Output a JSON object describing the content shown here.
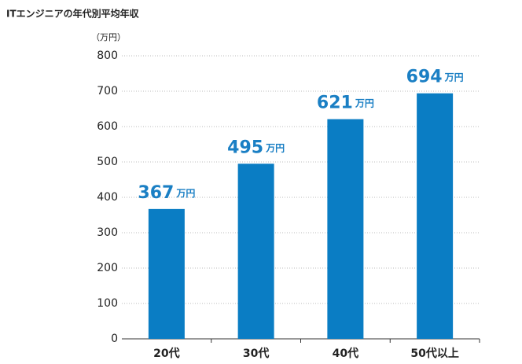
{
  "chart_data": {
    "type": "bar",
    "title": "ITエンジニアの年代別平均年収",
    "y_label": "（万円）",
    "categories": [
      "20代",
      "30代",
      "40代",
      "50代以上"
    ],
    "values": [
      367,
      495,
      621,
      694
    ],
    "value_labels": [
      "367万円",
      "495万円",
      "621万円",
      "694万円"
    ],
    "color": "#0a7dc4",
    "ylim": [
      0,
      800
    ],
    "yticks": [
      0,
      100,
      200,
      300,
      400,
      500,
      600,
      700,
      800
    ],
    "grid": true
  }
}
